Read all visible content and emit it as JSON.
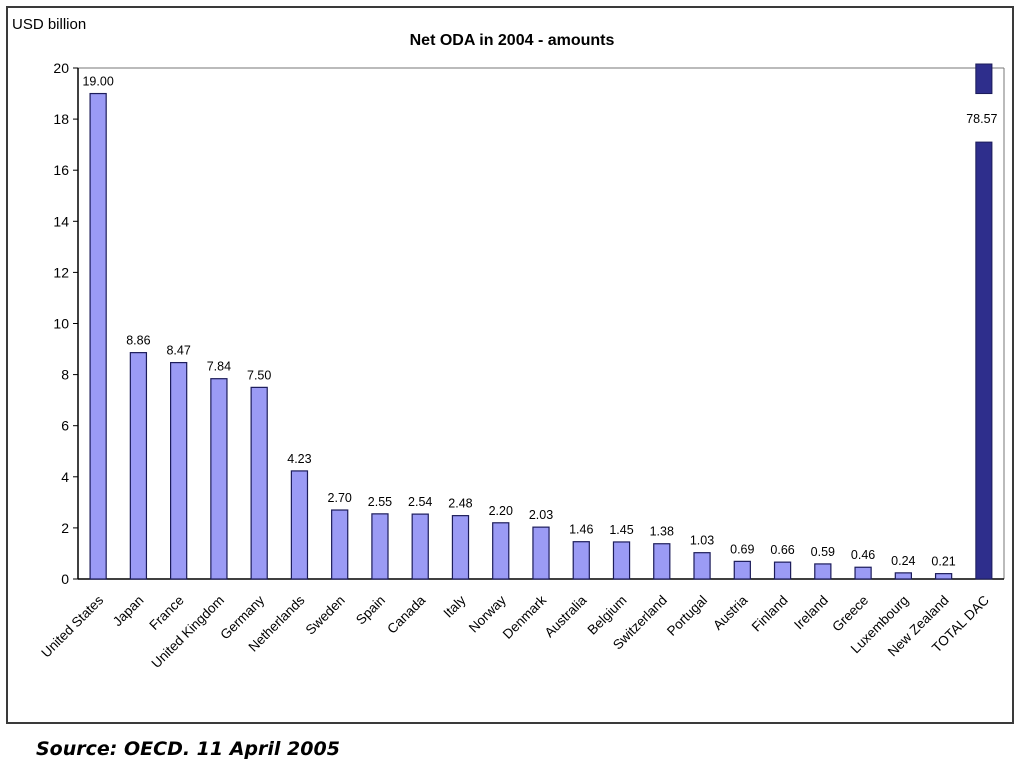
{
  "chart_data": {
    "type": "bar",
    "title": "Net ODA in 2004 - amounts",
    "unit_label": "USD billion",
    "xlabel": "",
    "ylabel": "USD billion",
    "ylim": [
      0,
      20
    ],
    "yticks": [
      0,
      2,
      4,
      6,
      8,
      10,
      12,
      14,
      16,
      18,
      20
    ],
    "grid": false,
    "legend": "none",
    "categories": [
      "United States",
      "Japan",
      "France",
      "United Kingdom",
      "Germany",
      "Netherlands",
      "Sweden",
      "Spain",
      "Canada",
      "Italy",
      "Norway",
      "Denmark",
      "Australia",
      "Belgium",
      "Switzerland",
      "Portugal",
      "Austria",
      "Finland",
      "Ireland",
      "Greece",
      "Luxembourg",
      "New Zealand",
      "TOTAL DAC"
    ],
    "values": [
      19.0,
      8.86,
      8.47,
      7.84,
      7.5,
      4.23,
      2.7,
      2.55,
      2.54,
      2.48,
      2.2,
      2.03,
      1.46,
      1.45,
      1.38,
      1.03,
      0.69,
      0.66,
      0.59,
      0.46,
      0.24,
      0.21,
      78.57
    ],
    "value_labels": [
      "19.00",
      "8.86",
      "8.47",
      "7.84",
      "7.50",
      "4.23",
      "2.70",
      "2.55",
      "2.54",
      "2.48",
      "2.20",
      "2.03",
      "1.46",
      "1.45",
      "1.38",
      "1.03",
      "0.69",
      "0.66",
      "0.59",
      "0.46",
      "0.24",
      "0.21",
      "78.57"
    ],
    "highlight_category": "TOTAL DAC",
    "colors": {
      "bar_fill": "#9b9bf5",
      "bar_stroke": "#1c1c5a",
      "total_fill": "#2e2e8c",
      "axis": "#000000"
    }
  },
  "source_note": "Source: OECD.  11 April 2005"
}
